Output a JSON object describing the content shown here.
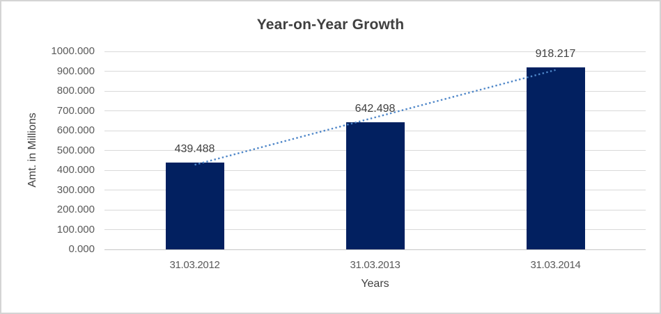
{
  "chart_data": {
    "type": "bar",
    "title": "Year-on-Year Growth",
    "xlabel": "Years",
    "ylabel": "Amt. in Millions",
    "categories": [
      "31.03.2012",
      "31.03.2013",
      "31.03.2014"
    ],
    "values": [
      439.488,
      642.498,
      918.217
    ],
    "data_labels": [
      "439.488",
      "642.498",
      "918.217"
    ],
    "ylim": [
      0,
      1000
    ],
    "ytick_step": 100,
    "ytick_labels": [
      "0.000",
      "100.000",
      "200.000",
      "300.000",
      "400.000",
      "500.000",
      "600.000",
      "700.000",
      "800.000",
      "900.000",
      "1000.000"
    ],
    "grid": true,
    "legend": "none",
    "trendline": {
      "type": "linear",
      "style": "dotted"
    },
    "colors": {
      "bar": "#022060",
      "trendline": "#4E86C8",
      "gridline": "#D9D9D9",
      "axis_line": "#C6C6C6",
      "title_text": "#3F3F3F",
      "label_text": "#404040",
      "tick_text": "#595959",
      "border": "#D4D4D4",
      "background": "#FFFFFF"
    }
  }
}
